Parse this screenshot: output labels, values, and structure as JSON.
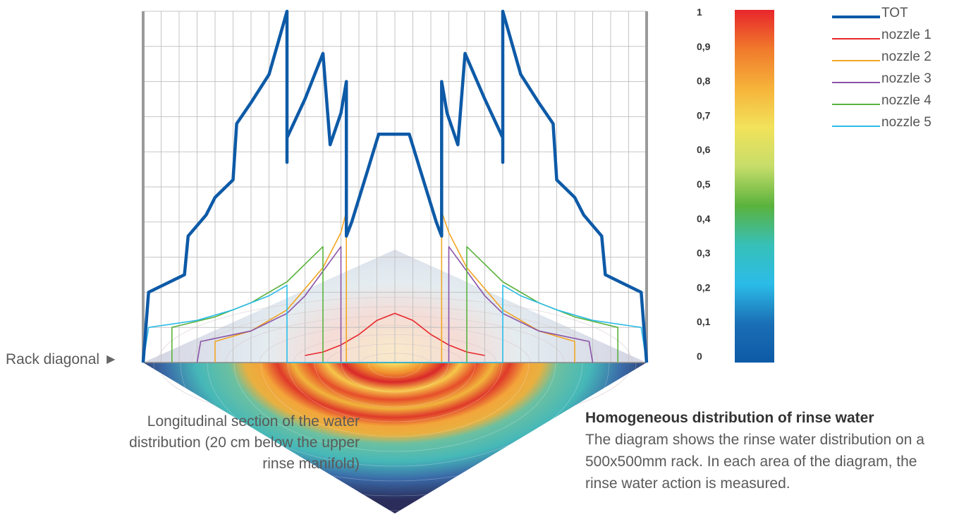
{
  "colors": {
    "tot": "#0d5aa7",
    "nozzle_1": "#e8262b",
    "nozzle_2": "#f2a623",
    "nozzle_3": "#8a52a8",
    "nozzle_4": "#5ab23d",
    "nozzle_5": "#2bbce8",
    "grid": "#bfbfbf",
    "frame": "#9a9a9a"
  },
  "labels": {
    "rack_diagonal": "Rack diagonal",
    "section_caption": "Longitudinal section of the water distribution (20 cm below the upper rinse manifold)",
    "description_title": "Homogeneous distribution of rinse water",
    "description_body": "The diagram shows the rinse water distribution on a 500x500mm rack. In each area of the diagram, the rinse water action is measured."
  },
  "chart_data": {
    "type": "line",
    "title": "",
    "xlabel": "",
    "ylabel": "",
    "x": [
      0,
      1,
      2,
      3,
      4,
      5,
      6,
      7,
      8,
      9,
      10,
      11,
      12,
      13,
      14,
      15,
      16,
      17,
      18,
      19,
      20,
      21,
      22,
      23,
      24,
      25,
      26,
      27,
      28
    ],
    "ylim": [
      0,
      1
    ],
    "grid": true,
    "color_scale": {
      "ticks": [
        "1",
        "0,9",
        "0,8",
        "0,7",
        "0,6",
        "0,5",
        "0,4",
        "0,3",
        "0,2",
        "0,1",
        "0"
      ],
      "gradient": [
        "#e8262b",
        "#f07a2c",
        "#f6b33a",
        "#f2e25a",
        "#c6dd6a",
        "#5ab23d",
        "#37c0b8",
        "#2bbce8",
        "#1a6fb5",
        "#0d5aa7"
      ]
    },
    "series": [
      {
        "name": "TOT",
        "points": [
          [
            0,
            0
          ],
          [
            0.3,
            0.2
          ],
          [
            2.3,
            0.25
          ],
          [
            2.5,
            0.36
          ],
          [
            3.5,
            0.42
          ],
          [
            4,
            0.47
          ],
          [
            5,
            0.52
          ],
          [
            5.2,
            0.68
          ],
          [
            6,
            0.74
          ],
          [
            7,
            0.82
          ],
          [
            8,
            1.0
          ],
          [
            8,
            0.57
          ],
          [
            8,
            0.64
          ],
          [
            9,
            0.75
          ],
          [
            10,
            0.88
          ],
          [
            10.4,
            0.62
          ],
          [
            11,
            0.71
          ],
          [
            11.3,
            0.8
          ],
          [
            11.3,
            0.36
          ],
          [
            11.6,
            0.4
          ],
          [
            12.5,
            0.55
          ],
          [
            13.1,
            0.65
          ],
          [
            14.8,
            0.65
          ],
          [
            15.4,
            0.55
          ],
          [
            16.3,
            0.4
          ],
          [
            16.6,
            0.36
          ],
          [
            16.6,
            0.8
          ],
          [
            16.9,
            0.71
          ],
          [
            17.5,
            0.62
          ],
          [
            17.9,
            0.88
          ],
          [
            19,
            0.75
          ],
          [
            20,
            0.64
          ],
          [
            20,
            0.57
          ],
          [
            20,
            1.0
          ],
          [
            21,
            0.82
          ],
          [
            22,
            0.74
          ],
          [
            22.8,
            0.68
          ],
          [
            23,
            0.52
          ],
          [
            24,
            0.47
          ],
          [
            24.5,
            0.42
          ],
          [
            25.5,
            0.36
          ],
          [
            25.7,
            0.25
          ],
          [
            27.7,
            0.2
          ],
          [
            28,
            0
          ]
        ]
      },
      {
        "name": "nozzle 1",
        "points": [
          [
            9,
            0.02
          ],
          [
            10,
            0.03
          ],
          [
            11,
            0.05
          ],
          [
            12,
            0.08
          ],
          [
            13,
            0.12
          ],
          [
            14,
            0.14
          ],
          [
            15,
            0.12
          ],
          [
            16,
            0.08
          ],
          [
            17,
            0.05
          ],
          [
            18,
            0.03
          ],
          [
            19,
            0.02
          ]
        ]
      },
      {
        "name": "nozzle 2",
        "points": [
          [
            4,
            0.0
          ],
          [
            4,
            0.06
          ],
          [
            6,
            0.09
          ],
          [
            8,
            0.15
          ],
          [
            10,
            0.27
          ],
          [
            11,
            0.37
          ],
          [
            11.3,
            0.43
          ],
          [
            11.3,
            0.0
          ],
          [
            16.6,
            0.0
          ],
          [
            16.6,
            0.43
          ],
          [
            17,
            0.37
          ],
          [
            18,
            0.27
          ],
          [
            20,
            0.15
          ],
          [
            22,
            0.09
          ],
          [
            24,
            0.06
          ],
          [
            24,
            0.0
          ]
        ]
      },
      {
        "name": "nozzle 3",
        "points": [
          [
            3,
            0.0
          ],
          [
            3.2,
            0.06
          ],
          [
            6,
            0.09
          ],
          [
            8,
            0.14
          ],
          [
            9,
            0.19
          ],
          [
            10,
            0.26
          ],
          [
            11,
            0.33
          ],
          [
            11,
            0.0
          ],
          [
            17,
            0.0
          ],
          [
            17,
            0.33
          ],
          [
            18,
            0.26
          ],
          [
            19,
            0.19
          ],
          [
            20,
            0.14
          ],
          [
            22,
            0.09
          ],
          [
            24.8,
            0.06
          ],
          [
            25,
            0.0
          ]
        ]
      },
      {
        "name": "nozzle 4",
        "points": [
          [
            1.6,
            0.0
          ],
          [
            1.6,
            0.1
          ],
          [
            4,
            0.13
          ],
          [
            6,
            0.17
          ],
          [
            8,
            0.23
          ],
          [
            9,
            0.28
          ],
          [
            10,
            0.33
          ],
          [
            10,
            0.0
          ],
          [
            18,
            0.0
          ],
          [
            18,
            0.33
          ],
          [
            19,
            0.28
          ],
          [
            20,
            0.23
          ],
          [
            22,
            0.17
          ],
          [
            24,
            0.13
          ],
          [
            26.4,
            0.1
          ],
          [
            26.4,
            0.0
          ]
        ]
      },
      {
        "name": "nozzle 5",
        "points": [
          [
            0,
            0.0
          ],
          [
            0.3,
            0.1
          ],
          [
            3,
            0.12
          ],
          [
            5,
            0.15
          ],
          [
            7,
            0.19
          ],
          [
            8,
            0.22
          ],
          [
            8,
            0.0
          ],
          [
            20,
            0.0
          ],
          [
            20,
            0.22
          ],
          [
            21,
            0.19
          ],
          [
            23,
            0.15
          ],
          [
            25,
            0.12
          ],
          [
            27.7,
            0.1
          ],
          [
            28,
            0.0
          ]
        ]
      }
    ]
  }
}
